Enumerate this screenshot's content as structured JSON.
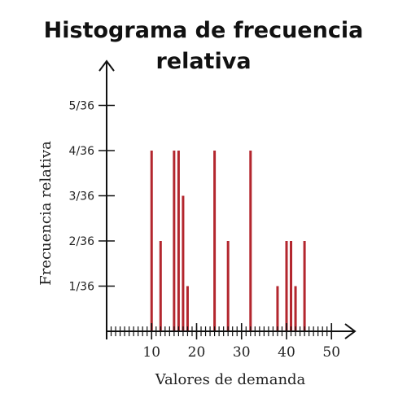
{
  "chart_data": {
    "type": "bar",
    "title_line1": "Histograma de frecuencia",
    "title_line2": "relativa",
    "xlabel": "Valores de demanda",
    "ylabel": "Frecuencia relativa",
    "xlim": [
      0,
      50
    ],
    "ylim": [
      0,
      5.8
    ],
    "x_tick_values": [
      10,
      20,
      30,
      40,
      50
    ],
    "x_tick_labels": [
      "10",
      "20",
      "30",
      "40",
      "50"
    ],
    "y_tick_values": [
      1,
      2,
      3,
      4,
      5
    ],
    "y_tick_labels": [
      "1/36",
      "2/36",
      "3/36",
      "4/36",
      "5/36"
    ],
    "y_unit_denominator": 36,
    "bar_color": "#b3262e",
    "bars": [
      {
        "x": 10,
        "count": 4
      },
      {
        "x": 12,
        "count": 2
      },
      {
        "x": 15,
        "count": 4
      },
      {
        "x": 16,
        "count": 4
      },
      {
        "x": 17,
        "count": 3
      },
      {
        "x": 18,
        "count": 1
      },
      {
        "x": 24,
        "count": 4
      },
      {
        "x": 27,
        "count": 2
      },
      {
        "x": 32,
        "count": 4
      },
      {
        "x": 38,
        "count": 1
      },
      {
        "x": 40,
        "count": 2
      },
      {
        "x": 41,
        "count": 2
      },
      {
        "x": 42,
        "count": 1
      },
      {
        "x": 44,
        "count": 2
      }
    ]
  }
}
